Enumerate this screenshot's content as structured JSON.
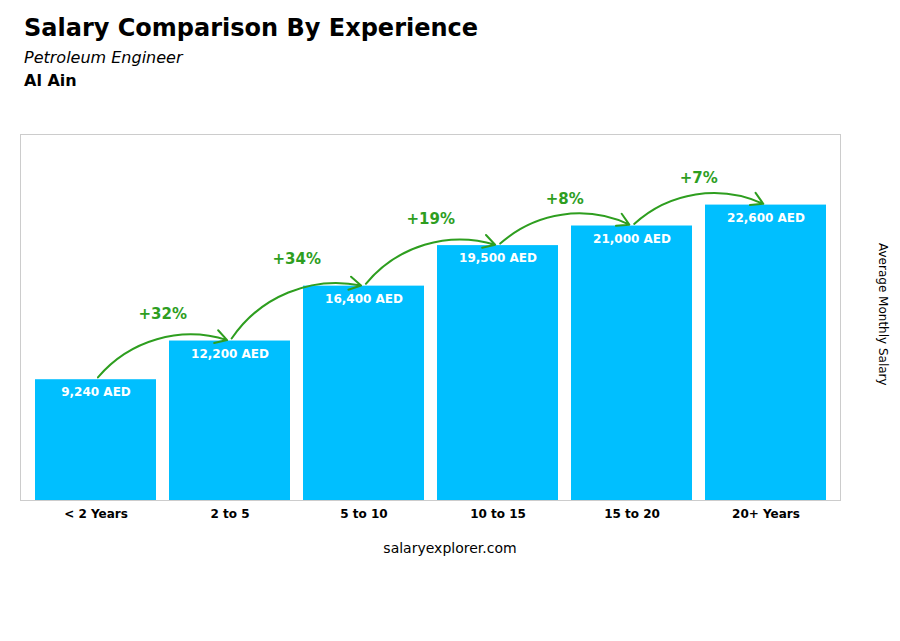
{
  "chart_data": {
    "type": "bar",
    "title": "Salary Comparison By Experience",
    "subtitle": "Petroleum Engineer",
    "categories": [
      "< 2 Years",
      "2 to 5",
      "5 to 10",
      "10 to 15",
      "15 to 20",
      "20+ Years"
    ],
    "values": [
      9240,
      12200,
      16400,
      19500,
      21000,
      22600
    ],
    "value_labels": [
      "9,240 AED",
      "12,200 AED",
      "16,400 AED",
      "19,500 AED",
      "21,000 AED",
      "22,600 AED"
    ],
    "data_labels": true,
    "color": "#00BFFF",
    "ylabel": "Average Monthly Salary",
    "ylim": [
      0,
      28000
    ],
    "tick_labels": "x",
    "grid": false,
    "annotations": [
      {
        "text": "Al Ain"
      },
      {
        "text": "+32%",
        "from": "< 2 Years",
        "to": "2 to 5"
      },
      {
        "text": "+34%",
        "from": "2 to 5",
        "to": "5 to 10"
      },
      {
        "text": "+19%",
        "from": "5 to 10",
        "to": "10 to 15"
      },
      {
        "text": "+8%",
        "from": "10 to 15",
        "to": "15 to 20"
      },
      {
        "text": "+7%",
        "from": "15 to 20",
        "to": "20+ Years"
      },
      {
        "text": "salaryexplorer.com"
      }
    ]
  }
}
